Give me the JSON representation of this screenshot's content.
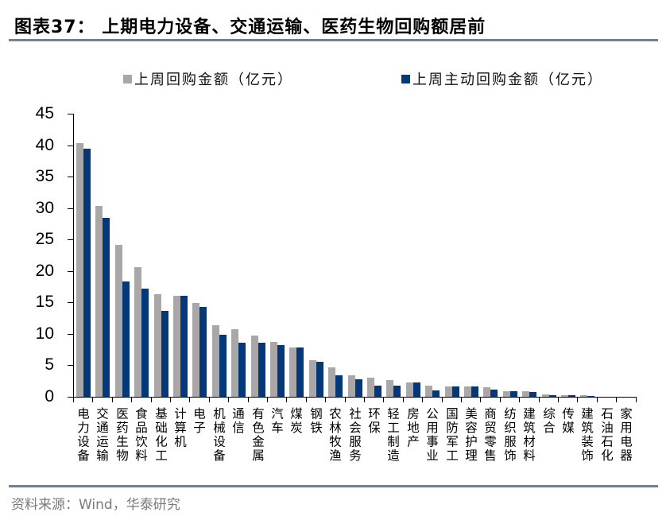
{
  "header": {
    "title": "图表37：  上期电力设备、交通运输、医药生物回购额居前"
  },
  "legend": {
    "series_1": "上周回购金额（亿元）",
    "series_2": "上周主动回购金额（亿元）"
  },
  "footer": {
    "source": "资料来源：Wind，华泰研究"
  },
  "colors": {
    "series_1": "#a9a7a7",
    "series_2": "#053878",
    "rule": "#6e8296"
  },
  "chart_data": {
    "type": "bar",
    "title": "上期电力设备、交通运输、医药生物回购额居前",
    "xlabel": "",
    "ylabel": "",
    "ylim": [
      0,
      45
    ],
    "yticks": [
      0,
      5,
      10,
      15,
      20,
      25,
      30,
      35,
      40,
      45
    ],
    "grid": false,
    "legend_position": "top",
    "categories": [
      "电力设备",
      "交通运输",
      "医药生物",
      "食品饮料",
      "基础化工",
      "计算机",
      "电子",
      "机械设备",
      "通信",
      "有色金属",
      "汽车",
      "煤炭",
      "钢铁",
      "农林牧渔",
      "社会服务",
      "环保",
      "轻工制造",
      "房地产",
      "公用事业",
      "国防军工",
      "美容护理",
      "商贸零售",
      "纺织服饰",
      "建筑材料",
      "综合",
      "传媒",
      "建筑装饰",
      "石油石化",
      "家用电器"
    ],
    "series": [
      {
        "name": "上周回购金额（亿元）",
        "values": [
          40.3,
          30.3,
          24.2,
          20.6,
          16.3,
          16.0,
          14.9,
          11.4,
          10.8,
          9.7,
          8.7,
          7.9,
          5.8,
          4.7,
          3.4,
          3.0,
          2.7,
          2.3,
          1.8,
          1.6,
          1.6,
          1.5,
          0.9,
          0.9,
          0.4,
          0.2,
          0.2,
          0.0,
          0.0
        ]
      },
      {
        "name": "上周主动回购金额（亿元）",
        "values": [
          39.5,
          28.5,
          18.3,
          17.2,
          13.6,
          16.0,
          14.3,
          9.9,
          8.6,
          8.6,
          8.2,
          7.9,
          5.5,
          3.4,
          2.8,
          1.8,
          1.8,
          2.3,
          1.0,
          1.6,
          1.6,
          1.2,
          0.9,
          0.8,
          0.3,
          0.2,
          0.1,
          0.0,
          0.0
        ]
      }
    ]
  }
}
